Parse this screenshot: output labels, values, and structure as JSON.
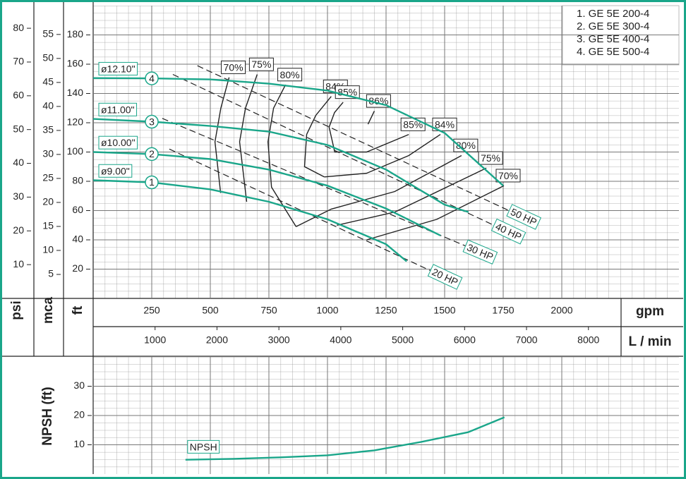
{
  "chart_data": {
    "type": "pump-curve",
    "color": "#1aa68a",
    "legend": [
      "1. GE 5E 200-4",
      "2. GE 5E 300-4",
      "3. GE 5E 400-4",
      "4. GE 5E 500-4"
    ],
    "axes": {
      "psi": {
        "label": "psi",
        "ylim": [
          0,
          86.7
        ],
        "yticks": [
          10,
          20,
          30,
          40,
          50,
          60,
          70,
          80
        ]
      },
      "mca": {
        "label": "mca",
        "ylim": [
          0,
          61
        ],
        "yticks": [
          5,
          10,
          15,
          20,
          25,
          30,
          35,
          40,
          45,
          50,
          55
        ]
      },
      "ft": {
        "label": "ft",
        "ylim": [
          0,
          200
        ],
        "yticks": [
          20,
          40,
          60,
          80,
          100,
          120,
          140,
          160,
          180
        ]
      },
      "gpm": {
        "label": "gpm",
        "xlim": [
          0,
          2500
        ],
        "xticks": [
          250,
          500,
          750,
          1000,
          1250,
          1500,
          1750,
          2000
        ]
      },
      "lmin": {
        "label": "L / min",
        "xlim": [
          0,
          9462
        ],
        "xticks": [
          1000,
          2000,
          3000,
          4000,
          5000,
          6000,
          7000,
          8000
        ]
      }
    },
    "impellers": [
      {
        "name": "ø9.00\"",
        "marker": "1",
        "x": [
          0,
          250,
          500,
          750,
          1000,
          1250,
          1338
        ],
        "y": [
          80.7,
          79.3,
          74.5,
          66,
          54,
          37,
          25.3
        ]
      },
      {
        "name": "ø10.00\"",
        "marker": "2",
        "x": [
          0,
          250,
          500,
          750,
          1000,
          1250,
          1482
        ],
        "y": [
          100,
          98.6,
          95.2,
          88,
          77,
          61.4,
          43
        ]
      },
      {
        "name": "ø11.00\"",
        "marker": "3",
        "x": [
          0,
          250,
          500,
          750,
          1000,
          1250,
          1500,
          1602
        ],
        "y": [
          122.6,
          120.7,
          117.8,
          114,
          104.8,
          88,
          64,
          59
        ]
      },
      {
        "name": "ø12.10\"",
        "marker": "4",
        "x": [
          0,
          250,
          500,
          750,
          1000,
          1250,
          1500,
          1750
        ],
        "y": [
          150.5,
          150.3,
          149.6,
          146.7,
          142,
          132,
          113,
          77
        ]
      }
    ],
    "efficiency": [
      {
        "name": "70%",
        "x": [
          580,
          545,
          520,
          544
        ],
        "y": [
          151,
          130,
          107,
          72
        ]
      },
      {
        "name": "75%",
        "x": [
          700,
          650,
          625,
          655
        ],
        "y": [
          153,
          130,
          107,
          66
        ]
      },
      {
        "name": "80%",
        "x": [
          821,
          770,
          746,
          761,
          866
        ],
        "y": [
          146,
          130,
          107,
          76,
          49
        ]
      },
      {
        "name": "84%",
        "x": [
          1016,
          950,
          911,
          902,
          986
        ],
        "y": [
          138,
          125,
          112,
          90,
          83
        ]
      },
      {
        "name": "85%",
        "x": [
          1067,
          1030,
          1007,
          1031,
          1080
        ],
        "y": [
          134,
          127,
          117,
          100,
          100
        ]
      },
      {
        "name": "86%",
        "x": [
          1173,
          1200
        ],
        "y": [
          119,
          128
        ]
      },
      {
        "name": "85%",
        "x": [
          1080,
          1167,
          1347
        ],
        "y": [
          100,
          100,
          112
        ]
      },
      {
        "name": "84%",
        "x": [
          986,
          1167,
          1347,
          1482
        ],
        "y": [
          83,
          85.5,
          97.6,
          112
        ]
      },
      {
        "name": "80%",
        "x": [
          866,
          1016,
          1287,
          1572
        ],
        "y": [
          49,
          61,
          73,
          97.6
        ]
      },
      {
        "name": "75%",
        "x": [
          1040,
          1287,
          1678
        ],
        "y": [
          50,
          59,
          89
        ]
      },
      {
        "name": "70%",
        "x": [
          1167,
          1467,
          1753
        ],
        "y": [
          40,
          54,
          77
        ]
      }
    ],
    "power": [
      {
        "name": "50 HP",
        "x": [
          445,
          1788
        ],
        "y": [
          159,
          59
        ]
      },
      {
        "name": "40 HP",
        "x": [
          340,
          1723
        ],
        "y": [
          153,
          49
        ]
      },
      {
        "name": "30 HP",
        "x": [
          295,
          1602
        ],
        "y": [
          123,
          35
        ]
      },
      {
        "name": "20 HP",
        "x": [
          325,
          1452
        ],
        "y": [
          102,
          18
        ]
      }
    ],
    "npsh": {
      "label": "NPSH (ft)",
      "ylim": [
        0,
        40
      ],
      "yticks": [
        10,
        20,
        30
      ],
      "series": {
        "name": "NPSH",
        "x": [
          394,
          600,
          800,
          1000,
          1200,
          1400,
          1600,
          1755
        ],
        "y": [
          4.9,
          5.2,
          5.7,
          6.4,
          8.1,
          11,
          14.3,
          19.4
        ]
      }
    }
  }
}
